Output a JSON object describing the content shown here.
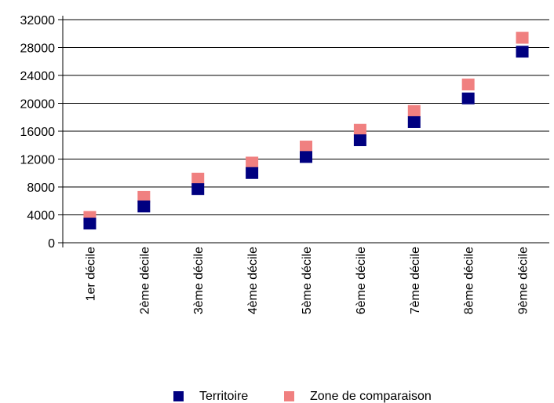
{
  "chart_data": {
    "type": "scatter",
    "categories": [
      "1er décile",
      "2ème décile",
      "3ème décile",
      "4ème décile",
      "5ème décile",
      "6ème décile",
      "7ème décile",
      "8ème décile",
      "9ème décile"
    ],
    "series": [
      {
        "name": "Territoire",
        "color": "#000080",
        "values": [
          2750,
          5200,
          7700,
          10000,
          12300,
          14700,
          17300,
          20700,
          27400
        ]
      },
      {
        "name": "Zone de comparaison",
        "color": "#f08080",
        "values": [
          3700,
          6600,
          9200,
          11500,
          13800,
          16200,
          18900,
          22700,
          29400
        ]
      }
    ],
    "yticks": [
      "0",
      "4000",
      "8000",
      "12000",
      "16000",
      "20000",
      "24000",
      "28000",
      "32000"
    ],
    "ylim": [
      0,
      32000
    ],
    "title": "",
    "xlabel": "",
    "ylabel": "",
    "grid": true,
    "legend": "bottom"
  }
}
